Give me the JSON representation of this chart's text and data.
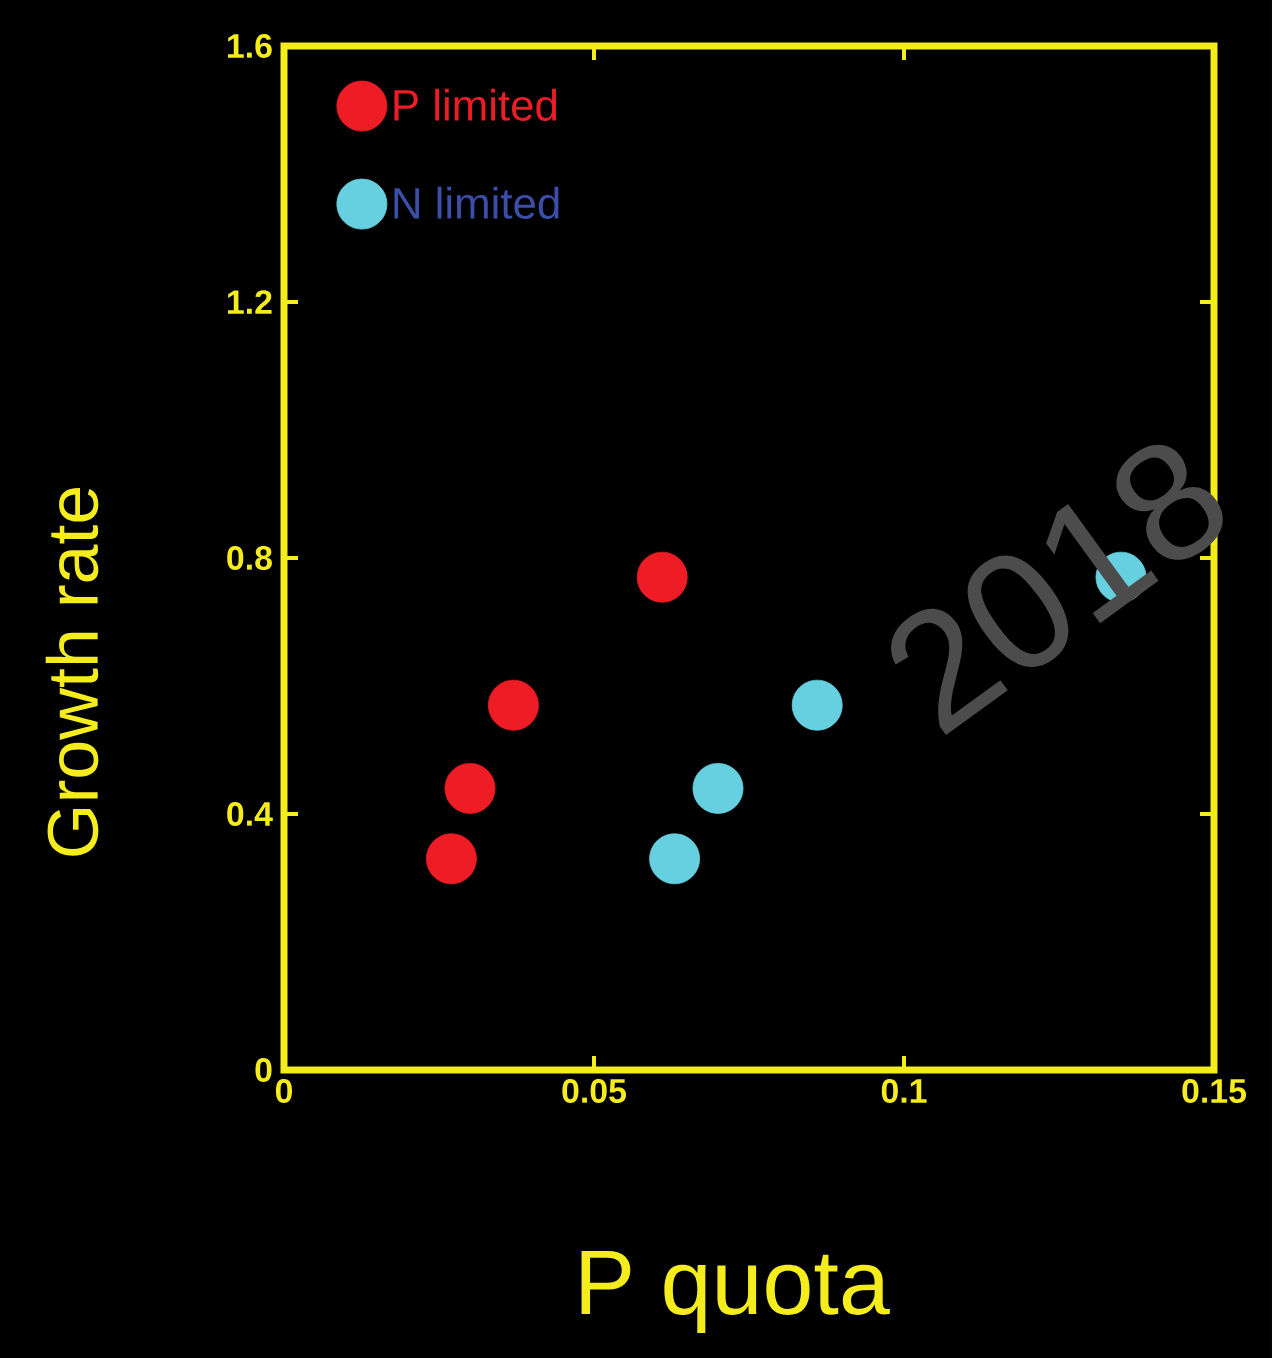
{
  "chart_data": {
    "type": "scatter",
    "xlabel": "P quota",
    "ylabel": "Growth rate",
    "annotations": [
      "2018"
    ],
    "series": [
      {
        "name": "P limited",
        "color": "#ee1c25",
        "x": [
          0.061,
          0.037,
          0.03,
          0.027
        ],
        "values": [
          0.77,
          0.57,
          0.44,
          0.33
        ]
      },
      {
        "name": "N limited",
        "color": "#66cfe0",
        "x": [
          0.063,
          0.07,
          0.086,
          0.135
        ],
        "values": [
          0.33,
          0.44,
          0.57,
          0.77
        ]
      }
    ],
    "xlim": [
      0,
      0.15
    ],
    "xticks": [
      0,
      0.05,
      0.1,
      0.15
    ],
    "ylim": [
      0,
      1.6
    ],
    "yticks": [
      0,
      0.4,
      0.8,
      1.2,
      1.6
    ],
    "marker": "circle",
    "legend": "top left",
    "grid": false
  }
}
